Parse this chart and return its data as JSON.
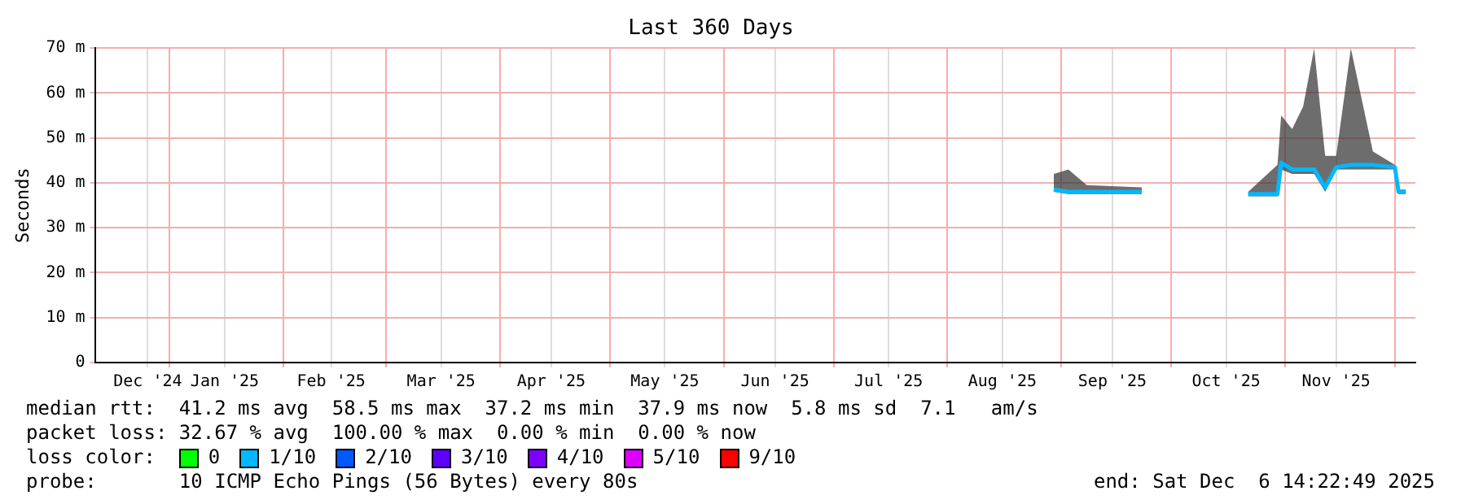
{
  "chart_data": {
    "type": "line",
    "title": "Last 360 Days",
    "ylabel": "Seconds",
    "x": [
      "2025-08-30",
      "2025-09-03",
      "2025-09-08",
      "2025-09-23",
      "2025-10-10",
      "2025-10-22",
      "2025-10-30",
      "2025-10-31",
      "2025-11-03",
      "2025-11-06",
      "2025-11-09",
      "2025-11-12",
      "2025-11-15",
      "2025-11-19",
      "2025-11-25",
      "2025-12-01",
      "2025-12-02",
      "2025-12-04"
    ],
    "series": [
      {
        "color": "#00b8ff",
        "values": [
          38.5,
          38,
          38,
          38,
          null,
          37.5,
          37.5,
          44.5,
          43,
          43,
          43,
          39,
          43.5,
          44,
          44,
          43.5,
          38,
          38
        ],
        "lower": [
          38,
          37.5,
          37.5,
          37.5,
          null,
          37,
          37,
          43,
          42,
          42,
          42,
          38,
          43,
          43,
          43,
          43,
          37.5,
          37.5
        ],
        "upper": [
          42,
          43,
          39.5,
          39,
          null,
          38,
          44,
          55,
          52,
          57,
          70,
          46,
          46,
          70,
          47,
          44,
          38.5,
          38.5
        ]
      }
    ],
    "xlim": [
      "2024-12-11T14:22",
      "2025-12-06T14:22"
    ],
    "xticks": [
      {
        "value": "2024-12-26",
        "label": "Dec '24"
      },
      {
        "value": "2025-01-01",
        "label": null
      },
      {
        "value": "2025-01-16",
        "label": "Jan '25"
      },
      {
        "value": "2025-02-01",
        "label": null
      },
      {
        "value": "2025-02-14",
        "label": "Feb '25"
      },
      {
        "value": "2025-03-01",
        "label": null
      },
      {
        "value": "2025-03-16",
        "label": "Mar '25"
      },
      {
        "value": "2025-04-01",
        "label": null
      },
      {
        "value": "2025-04-15",
        "label": "Apr '25"
      },
      {
        "value": "2025-05-01",
        "label": null
      },
      {
        "value": "2025-05-16",
        "label": "May '25"
      },
      {
        "value": "2025-06-01",
        "label": null
      },
      {
        "value": "2025-06-15",
        "label": "Jun '25"
      },
      {
        "value": "2025-07-01",
        "label": null
      },
      {
        "value": "2025-07-16",
        "label": "Jul '25"
      },
      {
        "value": "2025-08-01",
        "label": null
      },
      {
        "value": "2025-08-16",
        "label": "Aug '25"
      },
      {
        "value": "2025-09-01",
        "label": null
      },
      {
        "value": "2025-09-15",
        "label": "Sep '25"
      },
      {
        "value": "2025-10-01",
        "label": null
      },
      {
        "value": "2025-10-16",
        "label": "Oct '25"
      },
      {
        "value": "2025-11-01",
        "label": null
      },
      {
        "value": "2025-11-15",
        "label": "Nov '25"
      },
      {
        "value": "2025-12-01",
        "label": null
      }
    ],
    "ylim": [
      0,
      70
    ],
    "yticks": [
      0,
      {
        "value": 10,
        "label": "10 m"
      },
      {
        "value": 20,
        "label": "20 m"
      },
      {
        "value": 30,
        "label": "30 m"
      },
      {
        "value": 40,
        "label": "40 m"
      },
      {
        "value": 50,
        "label": "50 m"
      },
      {
        "value": 60,
        "label": "60 m"
      },
      {
        "value": 70,
        "label": "70 m"
      }
    ],
    "grid": true,
    "marker": "none",
    "line_style": "solid",
    "annotations": [
      "median rtt:  41.2 ms avg  58.5 ms max  37.2 ms min  37.9 ms now  5.8 ms sd  7.1   am/s",
      "packet loss: 32.67 % avg  100.00 % max  0.00 % min  0.00 % now",
      "loss color:",
      "0",
      "1/10",
      "2/10",
      "3/10",
      "4/10",
      "5/10",
      "9/10",
      "probe:       10 ICMP Echo Pings (56 Bytes) every 80s",
      "end: Sat Dec  6 14:22:49 2025"
    ]
  }
}
